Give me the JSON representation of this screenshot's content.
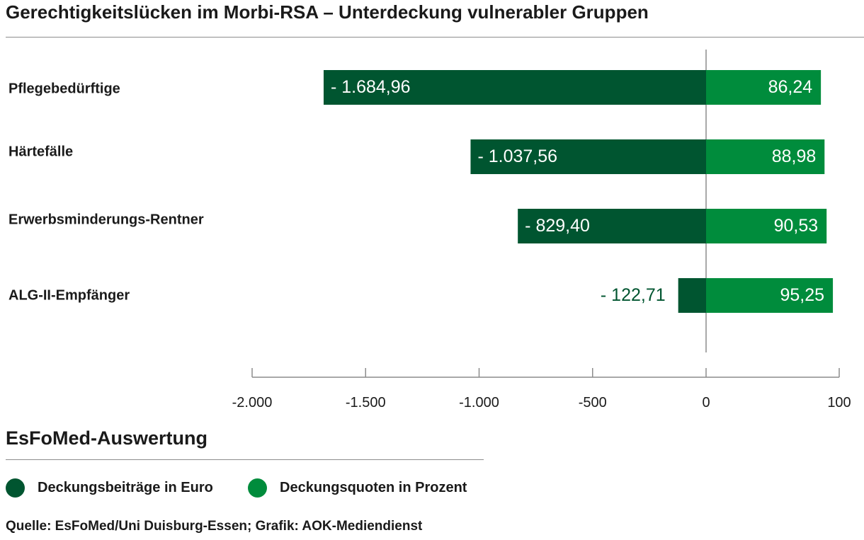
{
  "title": "Gerechtigkeitslücken im Morbi-RSA – Unterdeckung vulnerabler Gruppen",
  "subtitle": "EsFoMed-Auswertung",
  "source": "Quelle: EsFoMed/Uni Duisburg-Essen; Grafik: AOK-Mediendienst",
  "colors": {
    "euro": "#005530",
    "percent": "#008c3c",
    "axis": "#8c8c8c"
  },
  "chart_data": {
    "type": "bar",
    "orientation": "horizontal",
    "categories": [
      "Pflegebedürftige",
      "Härtefälle",
      "Erwerbsminderungs-Rentner",
      "ALG-II-Empfänger"
    ],
    "series": [
      {
        "name": "Deckungsbeiträge in Euro",
        "values": [
          -1684.96,
          -1037.56,
          -829.4,
          -122.71
        ],
        "labels": [
          "- 1.684,96",
          "- 1.037,56",
          "- 829,40",
          "- 122,71"
        ]
      },
      {
        "name": "Deckungsquoten in Prozent",
        "values": [
          86.24,
          88.98,
          90.53,
          95.25
        ],
        "labels": [
          "86,24",
          "88,98",
          "90,53",
          "95,25"
        ]
      }
    ],
    "x_ticks": [
      -2000,
      -1500,
      -1000,
      -500,
      0,
      100
    ],
    "x_tick_labels": [
      "-2.000",
      "-1.500",
      "-1.000",
      "-500",
      "0",
      "100"
    ],
    "xlim": [
      -2000,
      100
    ],
    "legend_position": "bottom-left",
    "grid": false
  }
}
